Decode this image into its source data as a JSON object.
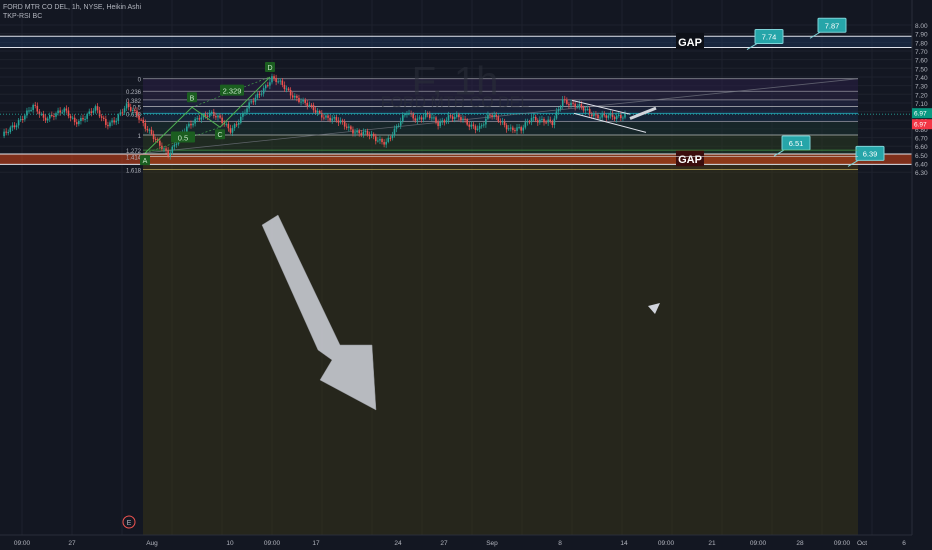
{
  "header": {
    "title_line": "FORD MTR CO DEL, 1h, NYSE, Heikin Ashi",
    "indicator": "TKP-RSI BC"
  },
  "watermark": {
    "symbol": "F, 1h",
    "name": "FORD MTR CO DEL"
  },
  "chart_data": {
    "type": "candlestick",
    "symbol": "F",
    "interval": "1h",
    "exchange": "NYSE",
    "style": "Heikin Ashi",
    "ylim": [
      6.25,
      8.0
    ],
    "y_ticks": [
      "8.00",
      "7.90",
      "7.80",
      "7.70",
      "7.60",
      "7.50",
      "7.40",
      "7.30",
      "7.20",
      "7.10",
      "7.00",
      "6.90",
      "6.80",
      "6.70",
      "6.60",
      "6.50",
      "6.40",
      "6.30"
    ],
    "x_ticks": [
      "09:00",
      "27",
      "Aug",
      "10",
      "09:00",
      "17",
      "24",
      "27",
      "Sep",
      "8",
      "14",
      "09:00",
      "21",
      "09:00",
      "28",
      "09:00",
      "Oct",
      "6"
    ],
    "last_price_labels": [
      {
        "value": "6.97",
        "color": "#089981"
      },
      {
        "value": "6.97",
        "color": "#f23645"
      }
    ],
    "price_path": [
      6.7,
      6.82,
      6.95,
      7.05,
      6.92,
      6.98,
      7.0,
      6.88,
      6.95,
      7.02,
      6.86,
      6.92,
      7.05,
      6.98,
      6.8,
      6.62,
      6.52,
      6.7,
      6.82,
      6.95,
      6.98,
      6.9,
      6.8,
      6.92,
      7.1,
      7.25,
      7.38,
      7.3,
      7.2,
      7.1,
      7.02,
      6.96,
      6.9,
      6.84,
      6.78,
      6.74,
      6.68,
      6.66,
      6.8,
      7.0,
      6.92,
      6.95,
      6.86,
      6.95,
      6.92,
      6.85,
      6.82,
      6.95,
      6.9,
      6.8,
      6.78,
      6.94,
      6.9,
      6.85,
      7.15,
      7.08,
      7.02,
      6.97,
      6.95,
      6.92,
      6.97
    ],
    "fib_levels": [
      {
        "label": "0",
        "price": 7.38
      },
      {
        "label": "0.236",
        "price": 7.235
      },
      {
        "label": "0.382",
        "price": 7.135
      },
      {
        "label": "0.5",
        "price": 7.06
      },
      {
        "label": "0.618",
        "price": 6.98
      },
      {
        "label": "",
        "price": 6.885
      },
      {
        "label": "1",
        "price": 6.73
      },
      {
        "label": "1.272",
        "price": 6.555
      },
      {
        "label": "1.414",
        "price": 6.48
      },
      {
        "label": "1.618",
        "price": 6.33
      }
    ],
    "pattern_points": [
      {
        "label": "A",
        "price": 6.52
      },
      {
        "label": "B",
        "price": 7.05
      },
      {
        "label": "C",
        "price": 6.82
      },
      {
        "label": "D",
        "price": 7.4
      }
    ],
    "pattern_ratios": [
      "2.329",
      "0.5"
    ],
    "gaps": [
      {
        "label": "GAP",
        "top": 7.87,
        "bottom": 7.74,
        "color": "#1e3a5f",
        "tags": [
          "7.87",
          "7.74"
        ]
      },
      {
        "label": "GAP",
        "top": 6.51,
        "bottom": 6.39,
        "color": "#d84315",
        "tags": [
          "6.51",
          "6.39"
        ]
      }
    ],
    "event_marker": "E"
  }
}
